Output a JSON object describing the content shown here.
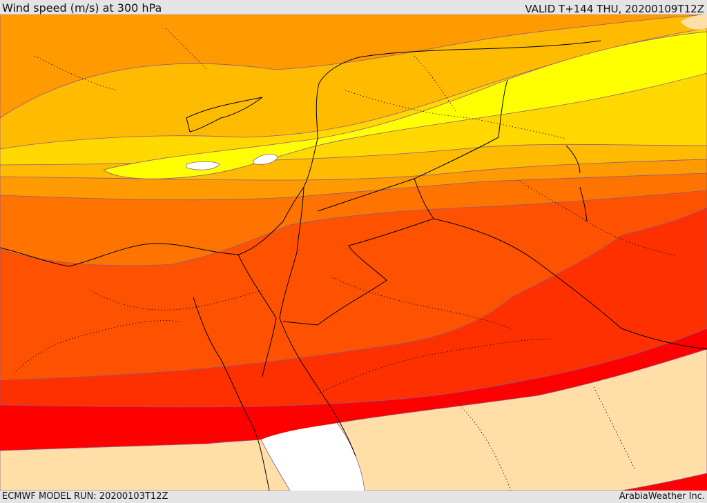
{
  "header": {
    "title": "Wind speed (m/s) at 300 hPa",
    "valid_time": "VALID T+144 THU, 20200109T12Z"
  },
  "footer": {
    "model_run": "ECMWF MODEL RUN: 20200103T12Z",
    "credit": "ArabiaWeather Inc."
  },
  "map": {
    "variable": "Wind speed",
    "level": "300 hPa",
    "units": "m/s",
    "colors": {
      "land_light": "#ffdea8",
      "white_max": "#ffffff",
      "yellow": "#ffff00",
      "yellow_orange": "#ffd800",
      "light_orange": "#ffbb00",
      "orange": "#ff9a00",
      "deep_orange": "#ff7400",
      "red_orange": "#ff5200",
      "orange_red": "#ff3000",
      "red": "#ff0000",
      "contour_line": "#8a5a8a",
      "border_line": "#000000"
    }
  }
}
